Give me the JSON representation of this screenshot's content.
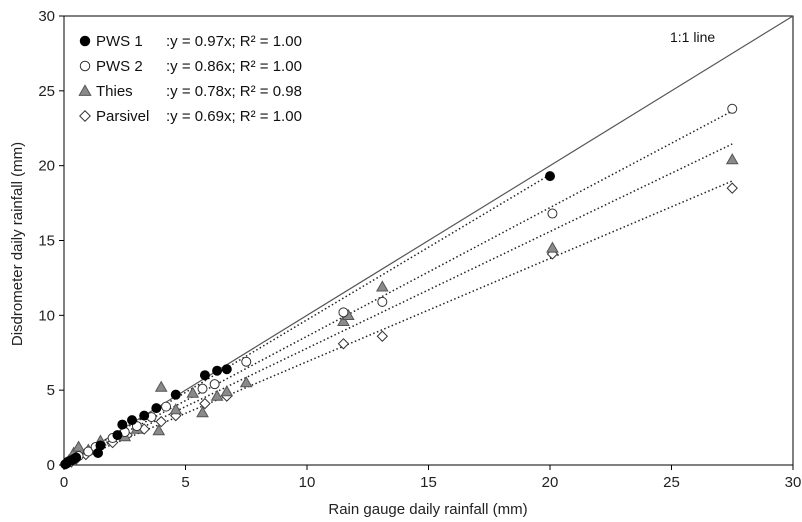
{
  "chart_data": {
    "type": "scatter",
    "xlabel": "Rain gauge daily rainfall (mm)",
    "ylabel": "Disdrometer daily rainfall (mm)",
    "xlim": [
      0,
      30
    ],
    "ylim": [
      0,
      30
    ],
    "xticks": [
      0,
      5,
      10,
      15,
      20,
      25,
      30
    ],
    "yticks": [
      0,
      5,
      10,
      15,
      20,
      25,
      30
    ],
    "grid": false,
    "legend_position": "top-left",
    "annotation": "1:1 line",
    "reference_line": {
      "type": "1:1",
      "slope": 1
    },
    "series": [
      {
        "name": "PWS 1",
        "equation": ":y = 0.97x; R² = 1.00",
        "slope": 0.97,
        "marker": "circle-filled",
        "color": "#000000",
        "points": [
          [
            0.05,
            0.05
          ],
          [
            0.1,
            0.1
          ],
          [
            0.15,
            0.2
          ],
          [
            0.2,
            0.25
          ],
          [
            0.3,
            0.3
          ],
          [
            0.4,
            0.4
          ],
          [
            0.5,
            0.5
          ],
          [
            1.4,
            0.8
          ],
          [
            1.5,
            1.3
          ],
          [
            2.2,
            2.0
          ],
          [
            2.4,
            2.7
          ],
          [
            2.8,
            3.0
          ],
          [
            3.3,
            3.3
          ],
          [
            3.8,
            3.8
          ],
          [
            4.6,
            4.7
          ],
          [
            5.8,
            6.0
          ],
          [
            6.3,
            6.3
          ],
          [
            6.7,
            6.4
          ],
          [
            20.0,
            19.3
          ]
        ]
      },
      {
        "name": "PWS 2",
        "equation": ":y = 0.86x; R² = 1.00",
        "slope": 0.86,
        "marker": "circle-open",
        "color": "#000000",
        "points": [
          [
            0.1,
            0.1
          ],
          [
            0.3,
            0.3
          ],
          [
            0.6,
            0.6
          ],
          [
            1.0,
            0.9
          ],
          [
            1.3,
            1.2
          ],
          [
            2.0,
            1.8
          ],
          [
            2.5,
            2.2
          ],
          [
            3.0,
            2.6
          ],
          [
            3.6,
            3.2
          ],
          [
            4.2,
            3.9
          ],
          [
            5.7,
            5.1
          ],
          [
            6.2,
            5.4
          ],
          [
            7.5,
            6.9
          ],
          [
            11.5,
            10.2
          ],
          [
            13.1,
            10.9
          ],
          [
            20.1,
            16.8
          ],
          [
            27.5,
            23.8
          ]
        ]
      },
      {
        "name": "Thies",
        "equation": ":y = 0.78x; R² = 0.98",
        "slope": 0.78,
        "marker": "triangle-filled",
        "color": "#808080",
        "points": [
          [
            0.2,
            0.3
          ],
          [
            0.4,
            0.8
          ],
          [
            0.6,
            1.2
          ],
          [
            1.0,
            1.0
          ],
          [
            1.5,
            1.6
          ],
          [
            2.5,
            1.9
          ],
          [
            3.0,
            2.4
          ],
          [
            3.9,
            2.3
          ],
          [
            4.0,
            5.2
          ],
          [
            4.6,
            3.7
          ],
          [
            5.3,
            4.8
          ],
          [
            5.7,
            3.5
          ],
          [
            6.3,
            4.6
          ],
          [
            6.7,
            4.9
          ],
          [
            7.5,
            5.5
          ],
          [
            11.5,
            9.6
          ],
          [
            11.7,
            10.0
          ],
          [
            13.1,
            11.9
          ],
          [
            20.1,
            14.5
          ],
          [
            27.5,
            20.4
          ]
        ]
      },
      {
        "name": "Parsivel",
        "equation": ":y = 0.69x; R² = 1.00",
        "slope": 0.69,
        "marker": "diamond-open",
        "color": "#000000",
        "points": [
          [
            0.1,
            0.1
          ],
          [
            0.3,
            0.2
          ],
          [
            0.5,
            0.4
          ],
          [
            0.9,
            0.7
          ],
          [
            1.3,
            0.9
          ],
          [
            2.0,
            1.5
          ],
          [
            2.6,
            2.0
          ],
          [
            3.3,
            2.4
          ],
          [
            4.0,
            2.9
          ],
          [
            4.6,
            3.3
          ],
          [
            5.8,
            4.1
          ],
          [
            6.7,
            4.6
          ],
          [
            11.5,
            8.1
          ],
          [
            13.1,
            8.6
          ],
          [
            20.1,
            14.1
          ],
          [
            27.5,
            18.5
          ]
        ]
      }
    ]
  }
}
